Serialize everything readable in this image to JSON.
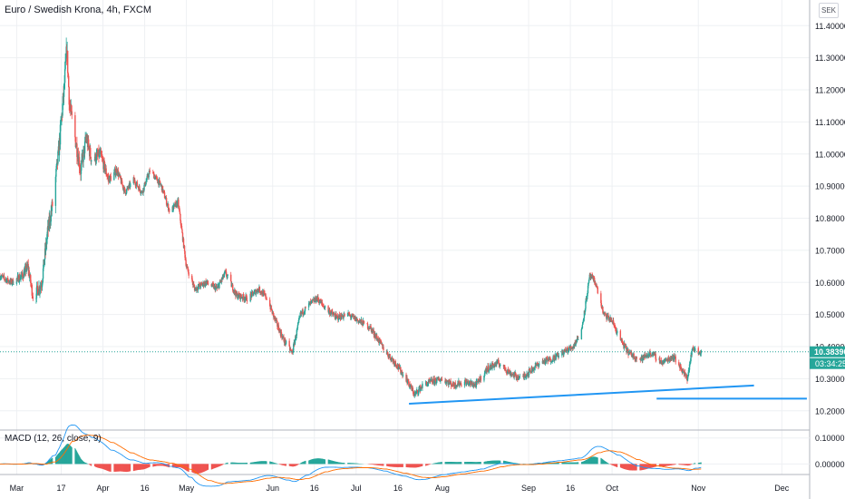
{
  "header": {
    "title": "Euro / Swedish Krona, 4h, FXCM",
    "currency_button": "SEK"
  },
  "price_badges": {
    "last_price": "10.38390",
    "countdown": "03:34:25"
  },
  "macd": {
    "label": "MACD (12, 26, close, 9)",
    "y_ticks": [
      "0.10000",
      "0.00000"
    ],
    "colors": {
      "macd_line": "#2196f3",
      "signal_line": "#ff6d00",
      "hist_up": "#26a69a",
      "hist_down": "#ef5350"
    }
  },
  "colors": {
    "up_candle": "#26a69a",
    "down_candle": "#ef5350",
    "trendline": "#2196f3",
    "price_badge": "#26a69a",
    "price_line": "#26a69a"
  },
  "chart_data": {
    "type": "candlestick",
    "title": "Euro / Swedish Krona, 4h, FXCM",
    "y_ticks": [
      "11.40000",
      "11.30000",
      "11.20000",
      "11.10000",
      "11.00000",
      "10.90000",
      "10.80000",
      "10.70000",
      "10.60000",
      "10.50000",
      "10.40000",
      "10.30000",
      "10.20000"
    ],
    "y_values": [
      11.4,
      11.3,
      11.2,
      11.1,
      11.0,
      10.9,
      10.8,
      10.7,
      10.6,
      10.5,
      10.4,
      10.3,
      10.2
    ],
    "ylim": [
      10.14,
      11.48
    ],
    "x_ticks": [
      "Mar",
      "17",
      "Apr",
      "16",
      "May",
      "Jun",
      "16",
      "Jul",
      "16",
      "Aug",
      "Sep",
      "16",
      "Oct",
      "Nov",
      "Dec"
    ],
    "x_tick_dates": [
      "2020-03-01",
      "2020-03-17",
      "2020-04-01",
      "2020-04-16",
      "2020-05-01",
      "2020-06-01",
      "2020-06-16",
      "2020-07-01",
      "2020-07-16",
      "2020-08-01",
      "2020-09-01",
      "2020-09-16",
      "2020-10-01",
      "2020-11-01",
      "2020-12-01"
    ],
    "xlim": [
      "2020-02-24",
      "2020-12-11"
    ],
    "grid": true,
    "last_close": 10.3839,
    "price_path": [
      [
        "2020-02-24",
        10.62
      ],
      [
        "2020-02-28",
        10.6
      ],
      [
        "2020-03-03",
        10.62
      ],
      [
        "2020-03-05",
        10.65
      ],
      [
        "2020-03-07",
        10.55
      ],
      [
        "2020-03-10",
        10.6
      ],
      [
        "2020-03-12",
        10.75
      ],
      [
        "2020-03-14",
        10.85
      ],
      [
        "2020-03-16",
        11.0
      ],
      [
        "2020-03-18",
        11.2
      ],
      [
        "2020-03-19",
        11.33
      ],
      [
        "2020-03-20",
        11.15
      ],
      [
        "2020-03-22",
        11.05
      ],
      [
        "2020-03-24",
        10.95
      ],
      [
        "2020-03-26",
        11.05
      ],
      [
        "2020-03-28",
        10.98
      ],
      [
        "2020-03-31",
        11.0
      ],
      [
        "2020-04-03",
        10.92
      ],
      [
        "2020-04-06",
        10.95
      ],
      [
        "2020-04-09",
        10.88
      ],
      [
        "2020-04-12",
        10.92
      ],
      [
        "2020-04-15",
        10.88
      ],
      [
        "2020-04-18",
        10.95
      ],
      [
        "2020-04-22",
        10.9
      ],
      [
        "2020-04-25",
        10.82
      ],
      [
        "2020-04-28",
        10.85
      ],
      [
        "2020-05-01",
        10.65
      ],
      [
        "2020-05-04",
        10.58
      ],
      [
        "2020-05-08",
        10.6
      ],
      [
        "2020-05-12",
        10.58
      ],
      [
        "2020-05-15",
        10.63
      ],
      [
        "2020-05-19",
        10.56
      ],
      [
        "2020-05-23",
        10.55
      ],
      [
        "2020-05-27",
        10.58
      ],
      [
        "2020-05-30",
        10.55
      ],
      [
        "2020-06-02",
        10.48
      ],
      [
        "2020-06-05",
        10.42
      ],
      [
        "2020-06-08",
        10.38
      ],
      [
        "2020-06-11",
        10.5
      ],
      [
        "2020-06-14",
        10.53
      ],
      [
        "2020-06-17",
        10.55
      ],
      [
        "2020-06-20",
        10.52
      ],
      [
        "2020-06-24",
        10.49
      ],
      [
        "2020-06-28",
        10.5
      ],
      [
        "2020-07-02",
        10.48
      ],
      [
        "2020-07-06",
        10.46
      ],
      [
        "2020-07-09",
        10.42
      ],
      [
        "2020-07-12",
        10.38
      ],
      [
        "2020-07-15",
        10.35
      ],
      [
        "2020-07-19",
        10.3
      ],
      [
        "2020-07-22",
        10.25
      ],
      [
        "2020-07-25",
        10.28
      ],
      [
        "2020-07-28",
        10.29
      ],
      [
        "2020-08-01",
        10.3
      ],
      [
        "2020-08-05",
        10.28
      ],
      [
        "2020-08-09",
        10.29
      ],
      [
        "2020-08-13",
        10.28
      ],
      [
        "2020-08-17",
        10.33
      ],
      [
        "2020-08-21",
        10.35
      ],
      [
        "2020-08-25",
        10.32
      ],
      [
        "2020-08-29",
        10.3
      ],
      [
        "2020-09-01",
        10.32
      ],
      [
        "2020-09-05",
        10.35
      ],
      [
        "2020-09-09",
        10.36
      ],
      [
        "2020-09-13",
        10.38
      ],
      [
        "2020-09-17",
        10.4
      ],
      [
        "2020-09-20",
        10.45
      ],
      [
        "2020-09-23",
        10.62
      ],
      [
        "2020-09-25",
        10.6
      ],
      [
        "2020-09-28",
        10.5
      ],
      [
        "2020-10-01",
        10.48
      ],
      [
        "2020-10-04",
        10.42
      ],
      [
        "2020-10-07",
        10.38
      ],
      [
        "2020-10-11",
        10.36
      ],
      [
        "2020-10-15",
        10.38
      ],
      [
        "2020-10-19",
        10.35
      ],
      [
        "2020-10-23",
        10.37
      ],
      [
        "2020-10-26",
        10.33
      ],
      [
        "2020-10-28",
        10.3
      ],
      [
        "2020-10-30",
        10.4
      ],
      [
        "2020-11-01",
        10.38
      ],
      [
        "2020-11-02",
        10.3839
      ]
    ],
    "trendlines": [
      {
        "from": [
          "2020-07-20",
          10.222
        ],
        "to": [
          "2020-11-21",
          10.279
        ]
      },
      {
        "from": [
          "2020-10-17",
          10.238
        ],
        "to": [
          "2020-12-10",
          10.238
        ]
      }
    ]
  }
}
